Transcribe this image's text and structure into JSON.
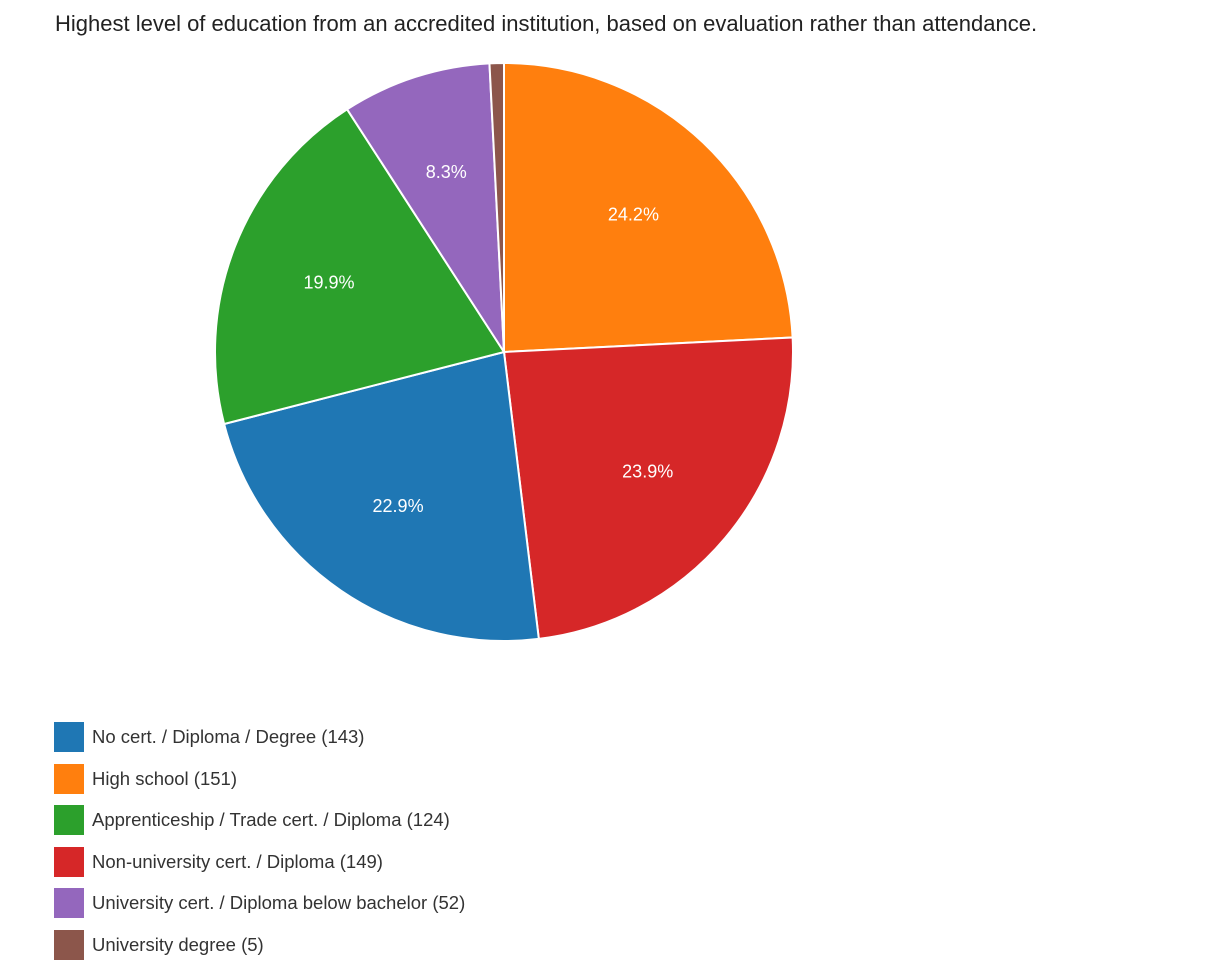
{
  "chart_data": {
    "type": "pie",
    "title": "Highest level of education from an accredited institution, based on evaluation rather than attendance.",
    "slices": [
      {
        "label": "No cert. / Diploma / Degree (143)",
        "value": 143,
        "percent_label": "22.9%",
        "color": "#1f77b4"
      },
      {
        "label": "High school (151)",
        "value": 151,
        "percent_label": "24.2%",
        "color": "#ff7f0e"
      },
      {
        "label": "Apprenticeship / Trade cert. / Diploma (124)",
        "value": 124,
        "percent_label": "19.9%",
        "color": "#2ca02c"
      },
      {
        "label": "Non-university cert. / Diploma (149)",
        "value": 149,
        "percent_label": "23.9%",
        "color": "#d62728"
      },
      {
        "label": "University cert. / Diploma below bachelor (52)",
        "value": 52,
        "percent_label": "8.3%",
        "color": "#9467bd"
      },
      {
        "label": "University degree (5)",
        "value": 5,
        "percent_label": "",
        "color": "#8c564b"
      }
    ],
    "legend_position": "bottom-left"
  }
}
